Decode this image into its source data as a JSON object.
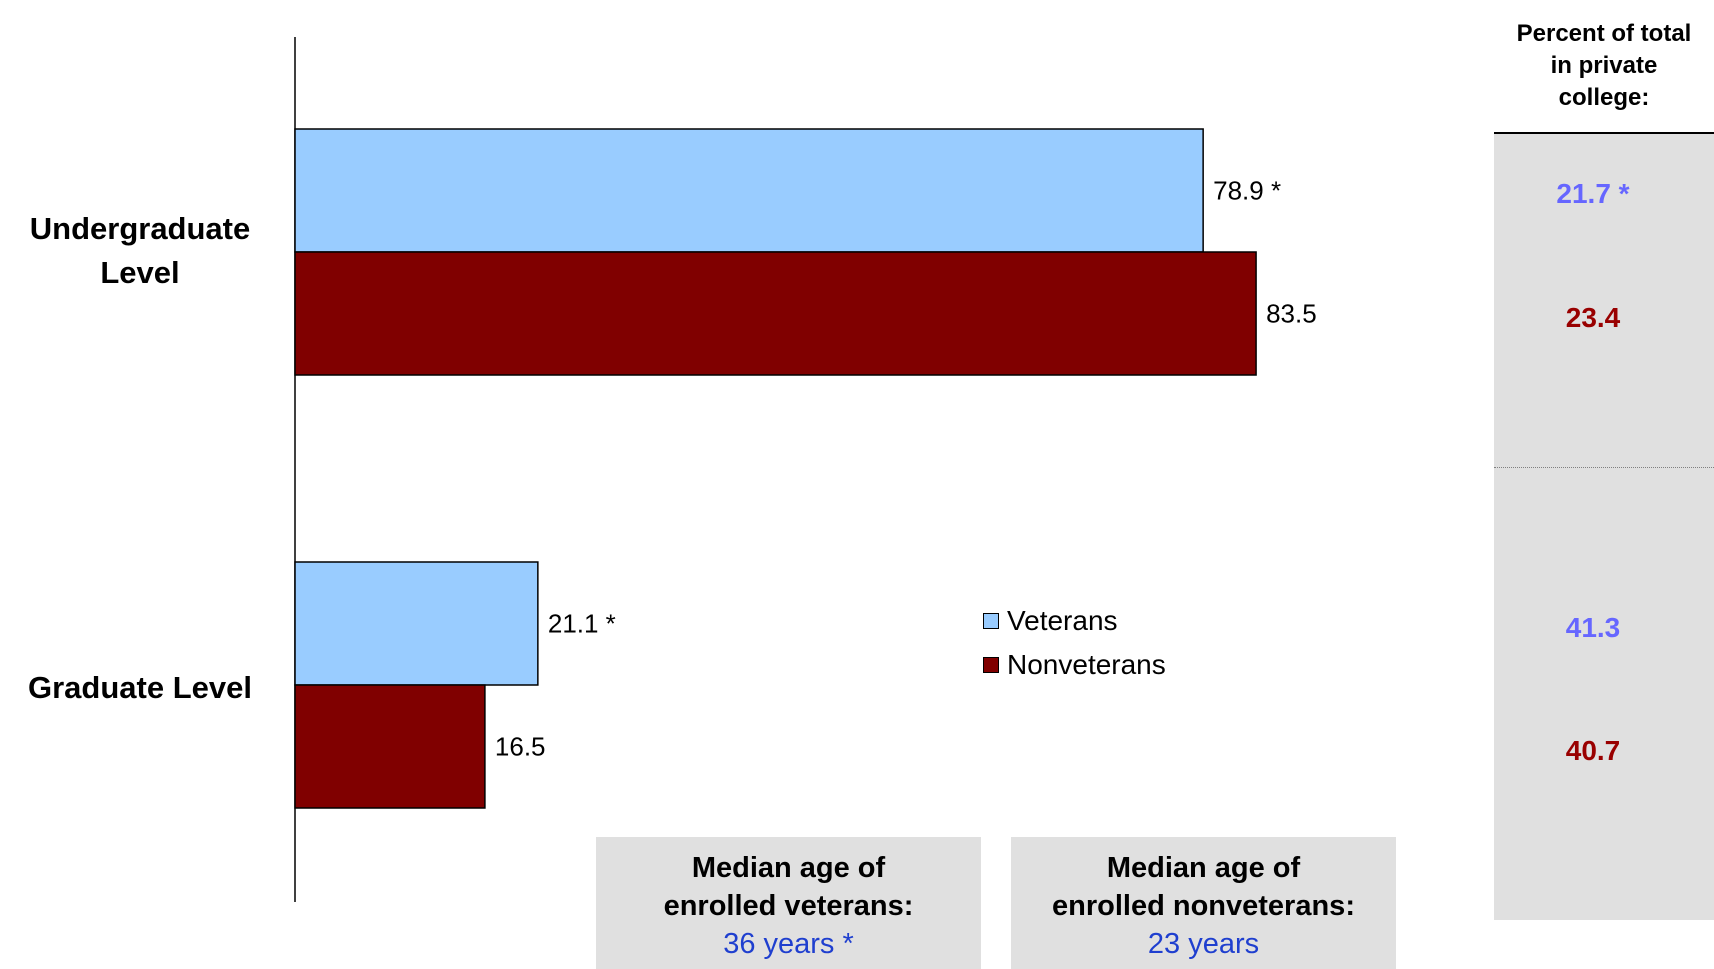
{
  "chart_data": {
    "type": "bar",
    "orientation": "horizontal",
    "categories": [
      "Undergraduate Level",
      "Graduate Level"
    ],
    "series": [
      {
        "name": "Veterans",
        "values": [
          78.9,
          21.1
        ],
        "value_labels": [
          "78.9 *",
          "21.1 *"
        ],
        "color": "#99ccff"
      },
      {
        "name": "Nonveterans",
        "values": [
          83.5,
          16.5
        ],
        "value_labels": [
          "83.5",
          "16.5"
        ],
        "color": "#800000"
      }
    ],
    "xlim": [
      0,
      100
    ],
    "grid": false,
    "legend_position": "center-right"
  },
  "category_labels": [
    {
      "line1": "Undergraduate",
      "line2": "Level"
    },
    {
      "line1": "Graduate Level",
      "line2": ""
    }
  ],
  "side_panel": {
    "header": "Percent of total in private college:",
    "values": [
      {
        "text": "21.7 *",
        "color": "#6666ff"
      },
      {
        "text": "23.4",
        "color": "#990000"
      },
      {
        "text": "41.3",
        "color": "#6666ff"
      },
      {
        "text": "40.7",
        "color": "#990000"
      }
    ]
  },
  "median_boxes": [
    {
      "line1": "Median age of",
      "line2": "enrolled veterans:",
      "value": "36 years *"
    },
    {
      "line1": "Median age of",
      "line2": "enrolled nonveterans:",
      "value": "23 years"
    }
  ]
}
